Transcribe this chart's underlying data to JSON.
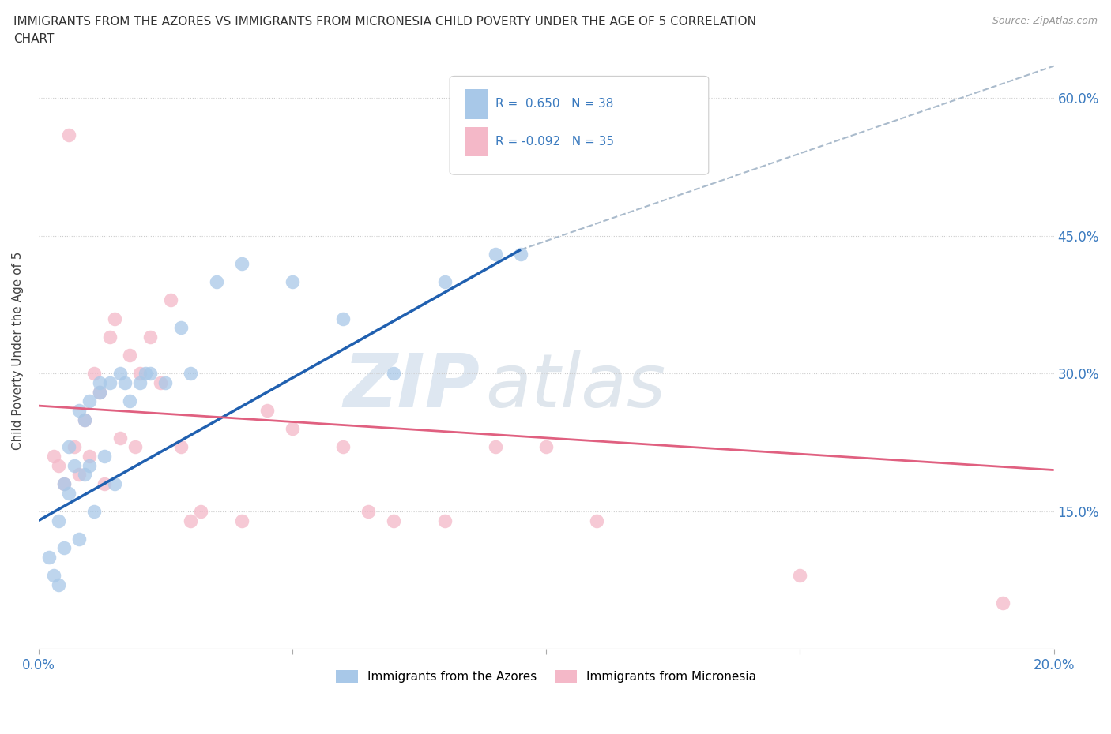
{
  "title_line1": "IMMIGRANTS FROM THE AZORES VS IMMIGRANTS FROM MICRONESIA CHILD POVERTY UNDER THE AGE OF 5 CORRELATION",
  "title_line2": "CHART",
  "source": "Source: ZipAtlas.com",
  "ylabel": "Child Poverty Under the Age of 5",
  "xlim": [
    0.0,
    0.2
  ],
  "ylim": [
    0.0,
    0.65
  ],
  "yticks": [
    0.0,
    0.15,
    0.3,
    0.45,
    0.6
  ],
  "xticks": [
    0.0,
    0.05,
    0.1,
    0.15,
    0.2
  ],
  "xtick_labels": [
    "0.0%",
    "",
    "",
    "",
    "20.0%"
  ],
  "ytick_labels": [
    "",
    "15.0%",
    "30.0%",
    "45.0%",
    "60.0%"
  ],
  "azores_color": "#a8c8e8",
  "micronesia_color": "#f4b8c8",
  "azores_line_color": "#2060b0",
  "micronesia_line_color": "#e06080",
  "trendline_dash_color": "#aabbcc",
  "R_azores": 0.65,
  "N_azores": 38,
  "R_micronesia": -0.092,
  "N_micronesia": 35,
  "watermark_ZIP": "ZIP",
  "watermark_atlas": "atlas",
  "azores_scatter_x": [
    0.002,
    0.003,
    0.004,
    0.004,
    0.005,
    0.005,
    0.006,
    0.006,
    0.007,
    0.008,
    0.008,
    0.009,
    0.009,
    0.01,
    0.01,
    0.011,
    0.012,
    0.012,
    0.013,
    0.014,
    0.015,
    0.016,
    0.017,
    0.018,
    0.02,
    0.021,
    0.022,
    0.025,
    0.028,
    0.03,
    0.035,
    0.04,
    0.05,
    0.06,
    0.07,
    0.08,
    0.09,
    0.095
  ],
  "azores_scatter_y": [
    0.1,
    0.08,
    0.07,
    0.14,
    0.11,
    0.18,
    0.22,
    0.17,
    0.2,
    0.12,
    0.26,
    0.25,
    0.19,
    0.2,
    0.27,
    0.15,
    0.29,
    0.28,
    0.21,
    0.29,
    0.18,
    0.3,
    0.29,
    0.27,
    0.29,
    0.3,
    0.3,
    0.29,
    0.35,
    0.3,
    0.4,
    0.42,
    0.4,
    0.36,
    0.3,
    0.4,
    0.43,
    0.43
  ],
  "micronesia_scatter_x": [
    0.003,
    0.004,
    0.005,
    0.006,
    0.007,
    0.008,
    0.009,
    0.01,
    0.011,
    0.012,
    0.013,
    0.014,
    0.015,
    0.016,
    0.018,
    0.019,
    0.02,
    0.022,
    0.024,
    0.026,
    0.028,
    0.03,
    0.032,
    0.04,
    0.045,
    0.05,
    0.06,
    0.065,
    0.07,
    0.08,
    0.09,
    0.1,
    0.11,
    0.15,
    0.19
  ],
  "micronesia_scatter_y": [
    0.21,
    0.2,
    0.18,
    0.56,
    0.22,
    0.19,
    0.25,
    0.21,
    0.3,
    0.28,
    0.18,
    0.34,
    0.36,
    0.23,
    0.32,
    0.22,
    0.3,
    0.34,
    0.29,
    0.38,
    0.22,
    0.14,
    0.15,
    0.14,
    0.26,
    0.24,
    0.22,
    0.15,
    0.14,
    0.14,
    0.22,
    0.22,
    0.14,
    0.08,
    0.05
  ],
  "azores_line_x0": 0.0,
  "azores_line_y0": 0.14,
  "azores_line_x1": 0.095,
  "azores_line_y1": 0.435,
  "micronesia_line_x0": 0.0,
  "micronesia_line_y0": 0.265,
  "micronesia_line_x1": 0.2,
  "micronesia_line_y1": 0.195,
  "dash_line_x0": 0.095,
  "dash_line_y0": 0.435,
  "dash_line_x1": 0.2,
  "dash_line_y1": 0.635
}
